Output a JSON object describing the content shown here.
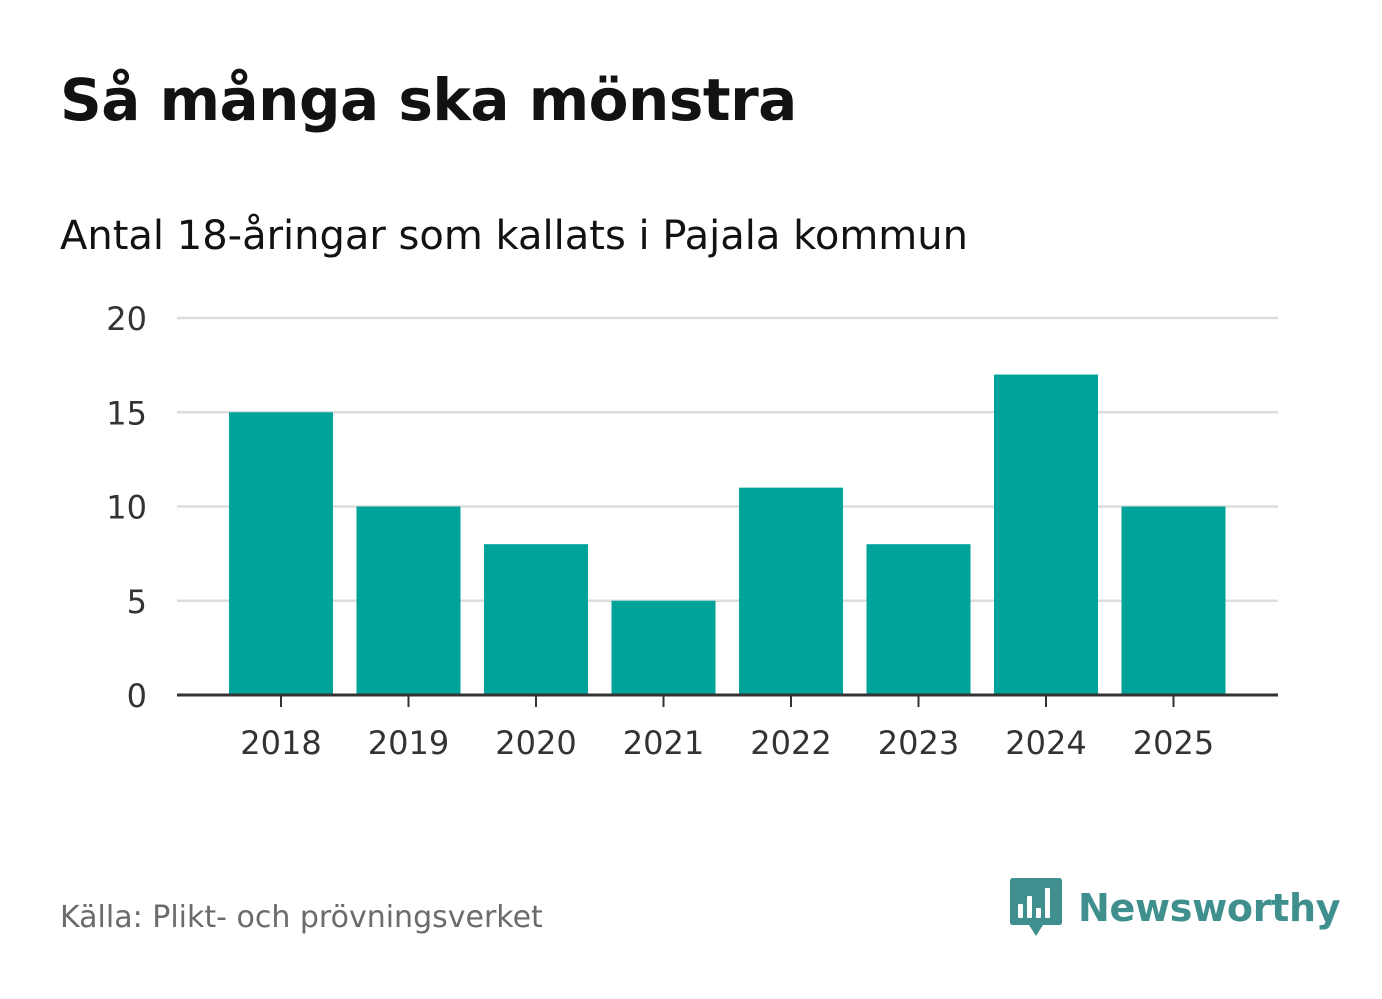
{
  "header": {
    "title": "Så många ska mönstra",
    "subtitle": "Antal 18-åringar som kallats i Pajala kommun"
  },
  "footer": {
    "source": "Källa: Plikt- och prövningsverket",
    "brand": "Newsworthy"
  },
  "colors": {
    "bar": "#00a39a",
    "brand": "#3e8f8d",
    "grid": "#dddddd",
    "axis": "#333333"
  },
  "icons": {
    "brand_logo": "bar-chart-speech-bubble-icon"
  },
  "chart_data": {
    "type": "bar",
    "title": "Antal 18-åringar som kallats i Pajala kommun",
    "xlabel": "",
    "ylabel": "",
    "categories": [
      "2018",
      "2019",
      "2020",
      "2021",
      "2022",
      "2023",
      "2024",
      "2025"
    ],
    "values": [
      15,
      10,
      8,
      5,
      11,
      8,
      17,
      10
    ],
    "ylim": [
      0,
      20
    ],
    "yticks": [
      0,
      5,
      10,
      15,
      20
    ],
    "grid": true,
    "legend": "none"
  }
}
